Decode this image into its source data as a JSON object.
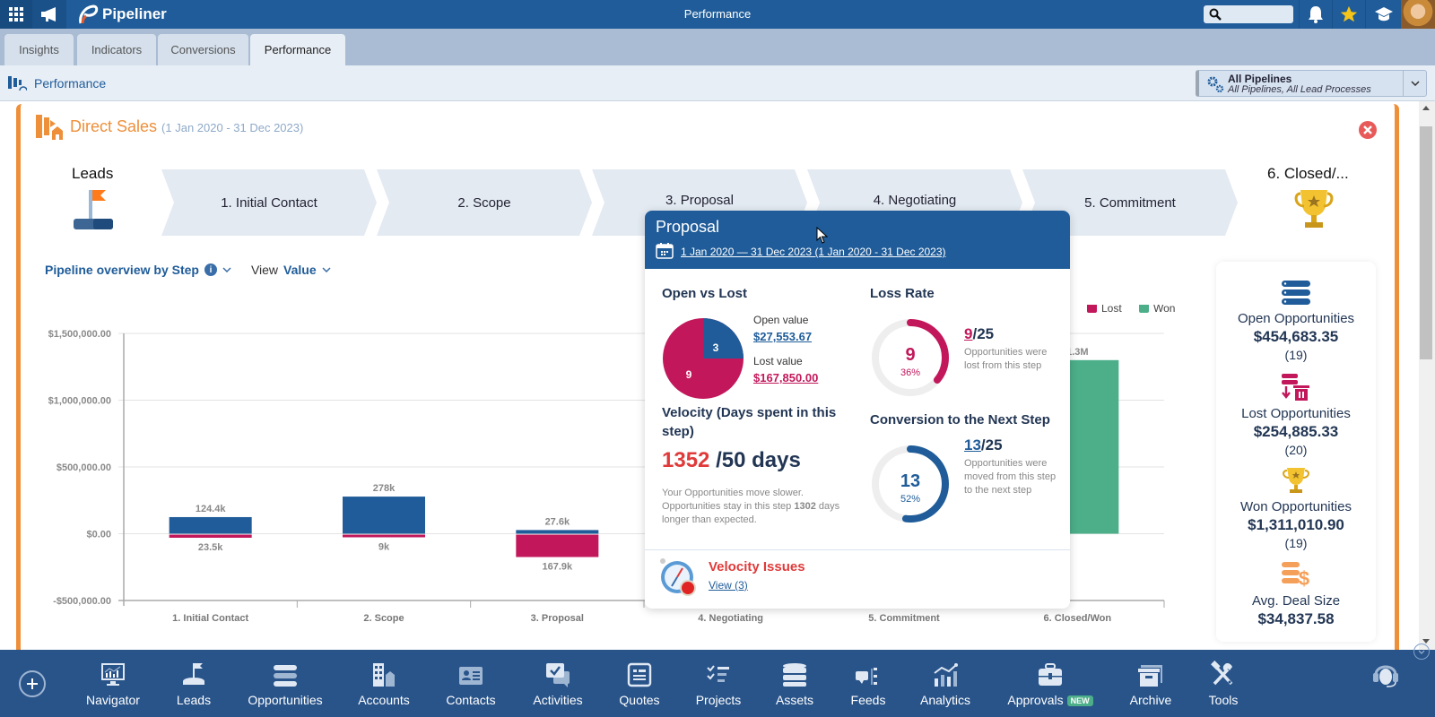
{
  "topbar": {
    "app_name": "Pipeliner",
    "title": "Performance",
    "search_placeholder": ""
  },
  "tabs": [
    {
      "label": "Insights",
      "active": false
    },
    {
      "label": "Indicators",
      "active": false
    },
    {
      "label": "Conversions",
      "active": false
    },
    {
      "label": "Performance",
      "active": true
    }
  ],
  "subheader": {
    "title": "Performance",
    "pipeline_selector": {
      "title": "All Pipelines",
      "subtitle": "All Pipelines, All Lead Processes"
    }
  },
  "pipeline": {
    "name": "Direct Sales",
    "range": "(1 Jan 2020 - 31 Dec 2023)",
    "leads_label": "Leads",
    "closed_label": "6. Closed/...",
    "steps": [
      "1. Initial Contact",
      "2. Scope",
      "3. Proposal",
      "4. Negotiating",
      "5. Commitment"
    ]
  },
  "controls": {
    "overview_label": "Pipeline overview by Step",
    "view_prefix": "View",
    "view_value": "Value"
  },
  "chart_data": {
    "type": "bar",
    "title": "Pipeline overview by Step",
    "xlabel": "",
    "ylabel": "",
    "categories": [
      "1. Initial Contact",
      "2. Scope",
      "3. Proposal",
      "4. Negotiating",
      "5. Commitment",
      "6. Closed/Won"
    ],
    "ylim": [
      -500000,
      1500000
    ],
    "yticks": [
      -500000,
      0,
      500000,
      1000000,
      1500000
    ],
    "ytick_labels": [
      "-$500,000.00",
      "$0.00",
      "$500,000.00",
      "$1,000,000.00",
      "$1,500,000.00"
    ],
    "grid": true,
    "legend": {
      "position": "top-right",
      "entries": [
        {
          "name": "Lost",
          "color": "#c2185b"
        },
        {
          "name": "Won",
          "color": "#4caf8a"
        }
      ]
    },
    "series": [
      {
        "name": "Open",
        "color": "#1f5c99",
        "values": [
          124400,
          278000,
          27600,
          null,
          null,
          null
        ],
        "labels": [
          "124.4k",
          "278k",
          "27.6k",
          "",
          "",
          ""
        ]
      },
      {
        "name": "Lost",
        "color": "#c2185b",
        "values": [
          -23500,
          -9000,
          -167900,
          null,
          null,
          null
        ],
        "labels": [
          "23.5k",
          "9k",
          "167.9k",
          "",
          "",
          ""
        ]
      },
      {
        "name": "Won",
        "color": "#4caf8a",
        "values": [
          null,
          null,
          null,
          null,
          null,
          1300000
        ],
        "labels": [
          "",
          "",
          "",
          "",
          "",
          "1.3M"
        ]
      }
    ]
  },
  "popup": {
    "title": "Proposal",
    "date_range": "1 Jan 2020 — 31 Dec 2023 (1 Jan 2020 - 31 Dec 2023)",
    "open_vs_lost": {
      "title": "Open vs Lost",
      "open_count": "3",
      "lost_count": "9",
      "open_label": "Open value",
      "open_value": "$27,553.67",
      "lost_label": "Lost value",
      "lost_value": "$167,850.00"
    },
    "loss_rate": {
      "title": "Loss Rate",
      "count": "9",
      "percent": "36%",
      "fraction_num": "9",
      "fraction_den": "/25",
      "description": "Opportunities were lost from this step",
      "ratio": 0.36
    },
    "velocity": {
      "title": "Velocity (Days spent in this step)",
      "actual": "1352",
      "expected": "/50 days",
      "desc_1": "Your Opportunities move slower. Opportunities stay in this step ",
      "desc_bold": "1302",
      "desc_2": " days longer than expected."
    },
    "conversion": {
      "title": "Conversion to the Next Step",
      "count": "13",
      "percent": "52%",
      "fraction_num": "13",
      "fraction_den": "/25",
      "description": "Opportunities were moved from this step to the next step",
      "ratio": 0.52
    },
    "velocity_issues": {
      "title": "Velocity Issues",
      "link": "View (3)"
    }
  },
  "summary": {
    "open": {
      "label": "Open Opportunities",
      "value": "$454,683.35",
      "count": "(19)"
    },
    "lost": {
      "label": "Lost Opportunities",
      "value": "$254,885.33",
      "count": "(20)"
    },
    "won": {
      "label": "Won Opportunities",
      "value": "$1,311,010.90",
      "count": "(19)"
    },
    "avg": {
      "label": "Avg. Deal Size",
      "value": "$34,837.58"
    }
  },
  "bottom_nav": [
    {
      "label": "Navigator"
    },
    {
      "label": "Leads"
    },
    {
      "label": "Opportunities"
    },
    {
      "label": "Accounts"
    },
    {
      "label": "Contacts"
    },
    {
      "label": "Activities"
    },
    {
      "label": "Quotes"
    },
    {
      "label": "Projects"
    },
    {
      "label": "Assets"
    },
    {
      "label": "Feeds"
    },
    {
      "label": "Analytics"
    },
    {
      "label": "Approvals",
      "badge": "NEW"
    },
    {
      "label": "Archive"
    },
    {
      "label": "Tools"
    }
  ]
}
